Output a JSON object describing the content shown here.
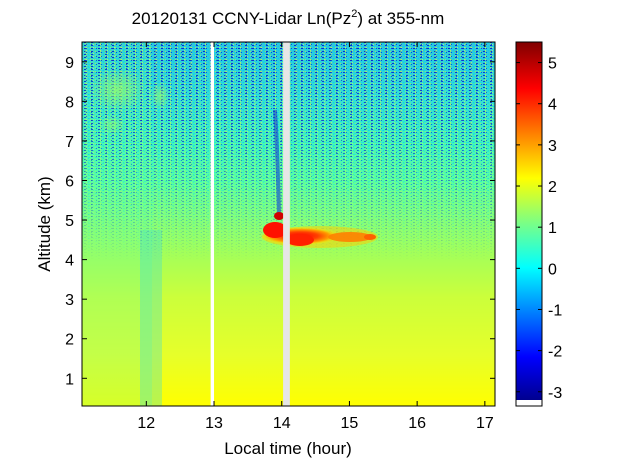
{
  "chart_data": {
    "type": "heatmap",
    "title_text": "20120131 CCNY-Lidar Ln(Pz",
    "title_sup": "2",
    "title_end": ") at 355-nm",
    "xlabel": "Local time (hour)",
    "ylabel": "Altitude (km)",
    "x_ticks": [
      "12",
      "13",
      "14",
      "15",
      "16",
      "17"
    ],
    "y_ticks": [
      "1",
      "2",
      "3",
      "4",
      "5",
      "6",
      "7",
      "8",
      "9"
    ],
    "xlim": [
      11.05,
      17.15
    ],
    "ylim": [
      0.3,
      9.5
    ],
    "colorbar_ticks": [
      "-3",
      "-2",
      "-1",
      "0",
      "1",
      "2",
      "3",
      "4",
      "5"
    ],
    "colorbar_range": [
      -3.2,
      5.5
    ],
    "colormap": "jet",
    "data_gaps_hours": [
      [
        12.95,
        13.0
      ],
      [
        14.02,
        14.12
      ]
    ],
    "features": [
      {
        "kind": "cloud layer",
        "time_start": 13.7,
        "time_end": 15.3,
        "altitude_km": [
          4.3,
          5.2
        ],
        "value_range": [
          2.5,
          4.5
        ]
      },
      {
        "kind": "noise / high-altitude aerosol",
        "time_start": 11.05,
        "time_end": 12.3,
        "altitude_km": [
          6.8,
          9.2
        ],
        "value_range": [
          -3,
          1
        ]
      }
    ],
    "grid": false
  }
}
